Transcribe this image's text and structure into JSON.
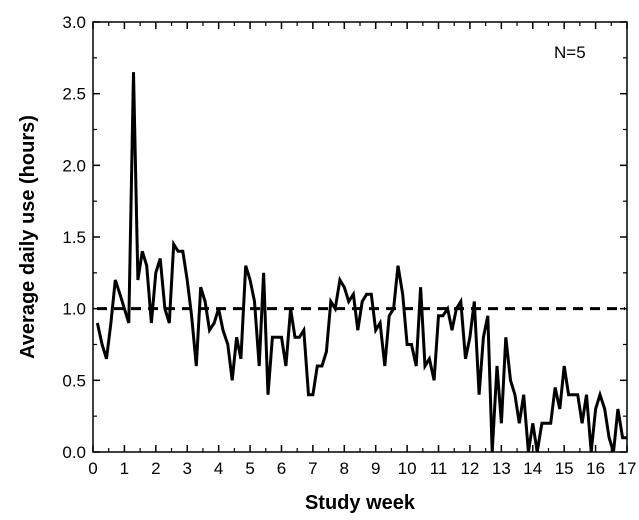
{
  "chart_data": {
    "type": "line",
    "title": "",
    "xlabel": "Study week",
    "ylabel": "Average daily use (hours)",
    "xlim": [
      0,
      17
    ],
    "ylim": [
      0,
      3.0
    ],
    "xticks": [
      0,
      1,
      2,
      3,
      4,
      5,
      6,
      7,
      8,
      9,
      10,
      11,
      12,
      13,
      14,
      15,
      16,
      17
    ],
    "xtick_labels": [
      "0",
      "1",
      "2",
      "3",
      "4",
      "5",
      "6",
      "7",
      "8",
      "9",
      "10",
      "11",
      "12",
      "13",
      "14",
      "15",
      "16",
      "17"
    ],
    "yticks": [
      0,
      0.5,
      1.0,
      1.5,
      2.0,
      2.5,
      3.0
    ],
    "ytick_labels": [
      "0.0",
      "0.5",
      "1.0",
      "1.5",
      "2.0",
      "2.5",
      "3.0"
    ],
    "annotation": "N=5",
    "reference_line": {
      "y": 1.0,
      "style": "dashed"
    },
    "legend": "none",
    "grid": false,
    "series": [
      {
        "x": [
          0.14,
          0.29,
          0.43,
          0.57,
          0.71,
          0.86,
          1.0,
          1.14,
          1.29,
          1.43,
          1.57,
          1.71,
          1.86,
          2.0,
          2.14,
          2.29,
          2.43,
          2.57,
          2.71,
          2.86,
          3.0,
          3.14,
          3.29,
          3.43,
          3.57,
          3.71,
          3.86,
          4.0,
          4.14,
          4.29,
          4.43,
          4.57,
          4.71,
          4.86,
          5.0,
          5.14,
          5.29,
          5.43,
          5.57,
          5.71,
          5.86,
          6.0,
          6.14,
          6.29,
          6.43,
          6.57,
          6.71,
          6.86,
          7.0,
          7.14,
          7.29,
          7.43,
          7.57,
          7.71,
          7.86,
          8.0,
          8.14,
          8.29,
          8.43,
          8.57,
          8.71,
          8.86,
          9.0,
          9.14,
          9.29,
          9.43,
          9.57,
          9.71,
          9.86,
          10.0,
          10.14,
          10.29,
          10.43,
          10.57,
          10.71,
          10.86,
          11.0,
          11.14,
          11.29,
          11.43,
          11.57,
          11.71,
          11.86,
          12.0,
          12.14,
          12.29,
          12.43,
          12.57,
          12.71,
          12.86,
          13.0,
          13.14,
          13.29,
          13.43,
          13.57,
          13.71,
          13.86,
          14.0,
          14.14,
          14.29,
          14.43,
          14.57,
          14.71,
          14.86,
          15.0,
          15.14,
          15.29,
          15.43,
          15.57,
          15.71,
          15.86,
          16.0,
          16.14,
          16.29,
          16.43,
          16.57,
          16.71,
          16.86,
          17.0
        ],
        "y": [
          0.9,
          0.75,
          0.65,
          0.9,
          1.2,
          1.1,
          1.0,
          0.9,
          2.65,
          1.2,
          1.4,
          1.3,
          0.9,
          1.25,
          1.35,
          1.0,
          0.9,
          1.45,
          1.4,
          1.4,
          1.2,
          0.95,
          0.6,
          1.15,
          1.05,
          0.85,
          0.9,
          1.0,
          0.85,
          0.75,
          0.5,
          0.8,
          0.65,
          1.3,
          1.2,
          1.05,
          0.6,
          1.25,
          0.4,
          0.8,
          0.8,
          0.8,
          0.6,
          1.0,
          0.8,
          0.8,
          0.85,
          0.4,
          0.4,
          0.6,
          0.6,
          0.7,
          1.05,
          1.0,
          1.2,
          1.15,
          1.05,
          1.1,
          0.85,
          1.05,
          1.1,
          1.1,
          0.85,
          0.9,
          0.6,
          0.95,
          1.0,
          1.3,
          1.1,
          0.75,
          0.75,
          0.6,
          1.15,
          0.6,
          0.65,
          0.5,
          0.95,
          0.95,
          1.0,
          0.85,
          1.0,
          1.05,
          0.65,
          0.8,
          1.05,
          0.4,
          0.8,
          0.95,
          0.0,
          0.6,
          0.2,
          0.8,
          0.5,
          0.4,
          0.2,
          0.4,
          0.0,
          0.2,
          0.0,
          0.2,
          0.2,
          0.2,
          0.45,
          0.3,
          0.6,
          0.4,
          0.4,
          0.4,
          0.2,
          0.4,
          0.0,
          0.3,
          0.4,
          0.3,
          0.1,
          0.0,
          0.3,
          0.1,
          0.1
        ]
      }
    ]
  }
}
